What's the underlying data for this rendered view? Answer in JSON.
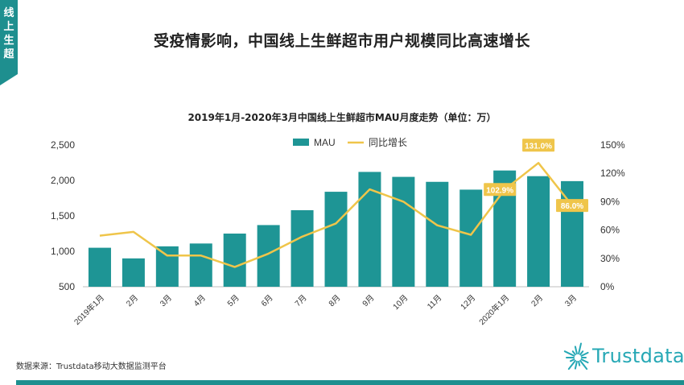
{
  "side_tab": "线上生超",
  "page_title": {
    "left": "受疫情影响",
    "sep": "，",
    "right": "中国线上生鲜超市用户规模同比高速增长"
  },
  "source": "数据来源：Trustdata移动大数据监测平台",
  "brand": "Trustdata",
  "colors": {
    "bar": "#1e9595",
    "line": "#efc54a",
    "label_bg": "#efc54a",
    "brand": "#26a8b5"
  },
  "chart_data": {
    "type": "bar",
    "title": "2019年1月-2020年3月中国线上生鲜超市MAU月度走势（单位：万）",
    "categories": [
      "2019年1月",
      "2月",
      "3月",
      "4月",
      "5月",
      "6月",
      "7月",
      "8月",
      "9月",
      "10月",
      "11月",
      "12月",
      "2020年1月",
      "2月",
      "3月"
    ],
    "series": [
      {
        "name": "MAU",
        "type": "bar",
        "axis": "left",
        "values": [
          1050,
          900,
          1070,
          1110,
          1250,
          1370,
          1580,
          1840,
          2120,
          2050,
          1980,
          1870,
          2140,
          2060,
          1990
        ]
      },
      {
        "name": "同比增长",
        "type": "line",
        "axis": "right",
        "values": [
          54,
          58,
          33,
          33,
          21,
          35,
          53,
          67,
          103,
          90,
          65,
          55,
          102.9,
          131.0,
          86.0
        ]
      }
    ],
    "data_labels": [
      {
        "index": 12,
        "text": "102.9%"
      },
      {
        "index": 13,
        "text": "131.0%"
      },
      {
        "index": 14,
        "text": "86.0%"
      }
    ],
    "y_left": {
      "min": 500,
      "max": 2500,
      "ticks": [
        "500",
        "1,000",
        "1,500",
        "2,000",
        "2,500"
      ]
    },
    "y_right": {
      "min": 0,
      "max": 150,
      "ticks": [
        "0%",
        "30%",
        "60%",
        "90%",
        "120%",
        "150%"
      ]
    },
    "legend_position": "top-center",
    "grid": false
  }
}
